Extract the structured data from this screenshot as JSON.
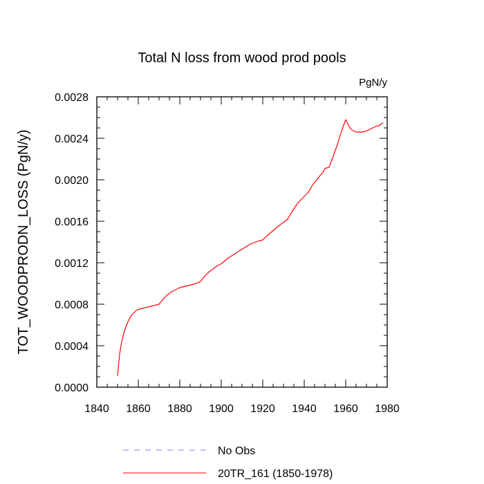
{
  "chart_data": {
    "type": "line",
    "title": "Total N loss from wood prod pools",
    "units_label": "PgN/y",
    "ylabel": "TOT_WOODPRODN_LOSS  (PgN/y)",
    "xlabel": "",
    "xlim": [
      1840,
      1980
    ],
    "ylim": [
      0.0,
      0.0028
    ],
    "x_ticks": [
      "1840",
      "1860",
      "1880",
      "1900",
      "1920",
      "1940",
      "1960",
      "1980"
    ],
    "y_ticks": [
      "0.0000",
      "0.0004",
      "0.0008",
      "0.0012",
      "0.0016",
      "0.0020",
      "0.0024",
      "0.0028"
    ],
    "grid": false,
    "legend_placement": "bottom",
    "series": [
      {
        "name": "20TR_161 (1850-1978)",
        "color": "#ff0000",
        "style": "solid",
        "x": [
          1850,
          1851,
          1852,
          1853,
          1854,
          1855,
          1856,
          1857,
          1858,
          1859,
          1860,
          1862,
          1864,
          1866,
          1868,
          1870,
          1872,
          1874,
          1876,
          1878,
          1880,
          1882,
          1884,
          1886,
          1888,
          1890,
          1892,
          1894,
          1896,
          1898,
          1900,
          1903,
          1906,
          1910,
          1914,
          1918,
          1920,
          1922,
          1925,
          1928,
          1930,
          1932,
          1934,
          1936,
          1938,
          1940,
          1942,
          1944,
          1946,
          1948,
          1949,
          1950,
          1952,
          1954,
          1956,
          1958,
          1960,
          1961,
          1962,
          1963,
          1964,
          1965,
          1966,
          1968,
          1970,
          1972,
          1974,
          1975,
          1976,
          1978
        ],
        "y": [
          0.00011,
          0.00032,
          0.00044,
          0.00052,
          0.00058,
          0.00063,
          0.00067,
          0.0007,
          0.00072,
          0.00074,
          0.00075,
          0.00076,
          0.00077,
          0.00078,
          0.00079,
          0.0008,
          0.00085,
          0.00089,
          0.00092,
          0.00094,
          0.00096,
          0.00097,
          0.00098,
          0.00099,
          0.001,
          0.00102,
          0.00107,
          0.00111,
          0.00114,
          0.00117,
          0.00119,
          0.00124,
          0.00128,
          0.00133,
          0.00138,
          0.00141,
          0.00142,
          0.00146,
          0.00151,
          0.00156,
          0.00159,
          0.00162,
          0.00169,
          0.00175,
          0.0018,
          0.00184,
          0.00188,
          0.00195,
          0.002,
          0.00205,
          0.00207,
          0.00211,
          0.00212,
          0.00223,
          0.00234,
          0.00247,
          0.00258,
          0.00254,
          0.0025,
          0.00248,
          0.00247,
          0.00246,
          0.00246,
          0.00246,
          0.00247,
          0.00249,
          0.00251,
          0.00252,
          0.00252,
          0.00255
        ]
      },
      {
        "name": "No Obs",
        "color": "#8080ff",
        "style": "dashed",
        "x": [],
        "y": []
      }
    ]
  }
}
